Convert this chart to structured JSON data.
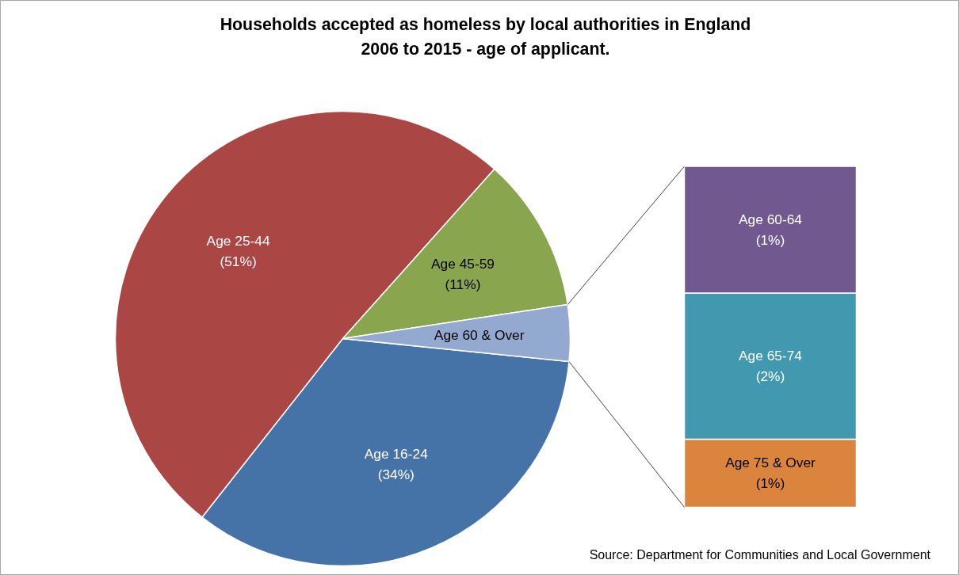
{
  "chart_data": [
    {
      "type": "pie",
      "title": "Households accepted as homeless by local authorities in England\n2006 to 2015 - age of applicant.",
      "categories": [
        "Age 16-24",
        "Age 25-44",
        "Age 45-59",
        "Age 60 & Over"
      ],
      "values": [
        34,
        51,
        11,
        4
      ],
      "colors": [
        "#4572a7",
        "#aa4643",
        "#89a54e",
        "#93a9cf"
      ],
      "value_labels": [
        "(34%)",
        "(51%)",
        "(11%)",
        null
      ],
      "annotations": [
        "Source:  Department for Communities and Local Government"
      ]
    },
    {
      "type": "bar",
      "stacked": true,
      "categories": [
        null
      ],
      "series": [
        {
          "name": "Age 75 & Over",
          "color": "#db843d",
          "values": [
            0.7
          ],
          "value_labels": [
            "(1%)"
          ]
        },
        {
          "name": "Age 65-74",
          "color": "#4198af",
          "values": [
            1.5
          ],
          "value_labels": [
            "(2%)"
          ]
        },
        {
          "name": "Age 60-64",
          "color": "#71588f",
          "values": [
            1.3
          ],
          "value_labels": [
            "(1%)"
          ]
        }
      ]
    }
  ]
}
